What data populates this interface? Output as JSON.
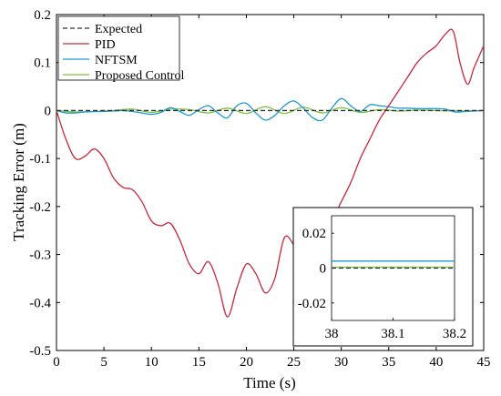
{
  "chart_data": {
    "type": "line",
    "xlabel": "Time (s)",
    "ylabel": "Tracking Error (m)",
    "xlim": [
      0,
      45
    ],
    "ylim": [
      -0.5,
      0.2
    ],
    "xticks": [
      0,
      5,
      10,
      15,
      20,
      25,
      30,
      35,
      40,
      45
    ],
    "yticks": [
      0.2,
      0.1,
      0,
      -0.1,
      -0.2,
      -0.3,
      -0.4,
      -0.5
    ],
    "xtick_labels": [
      "0",
      "5",
      "10",
      "15",
      "20",
      "25",
      "30",
      "35",
      "40",
      "45"
    ],
    "ytick_labels": [
      "0.2",
      "0.1",
      "0",
      "-0.1",
      "-0.2",
      "-0.3",
      "-0.4",
      "-0.5"
    ],
    "legend_position": "top-left",
    "grid": false,
    "series": [
      {
        "name": "Expected",
        "color": "#333333",
        "dash": true,
        "x": [
          0,
          45
        ],
        "y": [
          0,
          0
        ]
      },
      {
        "name": "PID",
        "color": "#c8283c",
        "dash": false,
        "x": [
          0,
          1,
          2,
          3,
          4,
          5,
          6,
          7,
          8,
          9,
          10,
          11,
          12,
          13,
          14,
          15,
          16,
          17,
          18,
          19,
          20,
          21,
          22,
          23,
          24,
          25,
          26,
          27,
          28,
          29,
          30,
          31,
          32,
          33,
          34,
          35,
          36,
          37,
          38,
          39,
          40,
          41,
          41.8,
          42.5,
          43.3,
          44,
          45
        ],
        "y": [
          0,
          -0.06,
          -0.1,
          -0.095,
          -0.08,
          -0.1,
          -0.14,
          -0.16,
          -0.165,
          -0.19,
          -0.23,
          -0.24,
          -0.235,
          -0.27,
          -0.32,
          -0.34,
          -0.315,
          -0.36,
          -0.43,
          -0.37,
          -0.32,
          -0.34,
          -0.38,
          -0.35,
          -0.265,
          -0.28,
          -0.31,
          -0.3,
          -0.26,
          -0.23,
          -0.19,
          -0.15,
          -0.1,
          -0.06,
          -0.02,
          0.01,
          0.04,
          0.07,
          0.1,
          0.12,
          0.135,
          0.16,
          0.165,
          0.1,
          0.055,
          0.09,
          0.135
        ]
      },
      {
        "name": "NFTSM",
        "color": "#1a9ad6",
        "dash": false,
        "x": [
          0,
          1,
          2,
          3,
          4,
          5,
          6,
          7,
          8,
          9,
          10,
          11,
          12,
          13,
          14,
          15,
          16,
          17,
          18,
          19,
          20,
          21,
          22,
          23,
          24,
          25,
          26,
          27,
          28,
          29,
          30,
          31,
          32,
          33,
          34,
          35,
          36,
          37,
          38,
          39,
          40,
          41,
          42,
          43,
          44,
          45
        ],
        "y": [
          0,
          -0.005,
          -0.005,
          -0.003,
          -0.002,
          -0.002,
          -0.001,
          0,
          -0.002,
          -0.005,
          -0.008,
          -0.004,
          0.006,
          -0.002,
          -0.01,
          0.002,
          0.01,
          -0.005,
          -0.015,
          0.01,
          0.015,
          -0.005,
          -0.02,
          -0.01,
          0.01,
          0.02,
          0.005,
          -0.015,
          -0.02,
          0.005,
          0.025,
          0.01,
          -0.002,
          0.012,
          0.01,
          0.008,
          0.005,
          0.005,
          0.004,
          0.004,
          0.004,
          0.003,
          -0.003,
          -0.002,
          -0.001,
          0
        ]
      },
      {
        "name": "Proposed Control",
        "color": "#7cc242",
        "dash": false,
        "x": [
          0,
          2,
          4,
          6,
          8,
          10,
          12,
          14,
          16,
          18,
          20,
          22,
          24,
          26,
          28,
          30,
          32,
          34,
          36,
          38,
          40,
          42,
          45
        ],
        "y": [
          0,
          -0.003,
          -0.002,
          0,
          0.003,
          -0.004,
          0.003,
          0.002,
          -0.005,
          0.005,
          -0.006,
          0.008,
          -0.006,
          0.007,
          -0.005,
          0.006,
          -0.004,
          0.002,
          -0.001,
          0.001,
          0,
          -0.001,
          0
        ]
      }
    ],
    "inset": {
      "xlim": [
        38,
        38.2
      ],
      "ylim": [
        -0.03,
        0.03
      ],
      "xticks": [
        38,
        38.1,
        38.2
      ],
      "yticks": [
        0.02,
        0,
        -0.02
      ],
      "xtick_labels": [
        "38",
        "38.1",
        "38.2"
      ],
      "ytick_labels": [
        "0.02",
        "0",
        "-0.02"
      ],
      "series": [
        {
          "name": "Expected",
          "x": [
            38,
            38.2
          ],
          "y": [
            0,
            0
          ]
        },
        {
          "name": "NFTSM",
          "x": [
            38,
            38.2
          ],
          "y": [
            0.004,
            0.004
          ]
        },
        {
          "name": "Proposed Control",
          "x": [
            38,
            38.2
          ],
          "y": [
            0.0005,
            0.0005
          ]
        }
      ]
    }
  }
}
